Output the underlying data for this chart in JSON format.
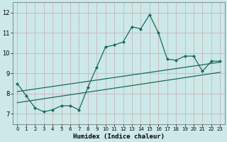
{
  "xlabel": "Humidex (Indice chaleur)",
  "x_values": [
    0,
    1,
    2,
    3,
    4,
    5,
    6,
    7,
    8,
    9,
    10,
    11,
    12,
    13,
    14,
    15,
    16,
    17,
    18,
    19,
    20,
    21,
    22,
    23
  ],
  "y_values": [
    8.5,
    7.9,
    7.3,
    7.1,
    7.2,
    7.4,
    7.4,
    7.2,
    8.3,
    9.3,
    10.3,
    10.4,
    10.55,
    11.3,
    11.2,
    11.9,
    11.0,
    9.7,
    9.65,
    9.85,
    9.85,
    9.1,
    9.6,
    9.6
  ],
  "line_color": "#1a6b5a",
  "marker": "D",
  "marker_size": 2.2,
  "ylim": [
    6.5,
    12.5
  ],
  "xlim": [
    -0.5,
    23.5
  ],
  "yticks": [
    7,
    8,
    9,
    10,
    11,
    12
  ],
  "xticks": [
    0,
    1,
    2,
    3,
    4,
    5,
    6,
    7,
    8,
    9,
    10,
    11,
    12,
    13,
    14,
    15,
    16,
    17,
    18,
    19,
    20,
    21,
    22,
    23
  ],
  "bg_color": "#cce8e8",
  "grid_color": "#c8b8b8",
  "trend_line_color": "#1a6b5a",
  "trend_x_start": 0,
  "trend_x_end": 23,
  "trend_y_start1": 8.1,
  "trend_y_end1": 9.55,
  "trend_y_start2": 7.55,
  "trend_y_end2": 9.05
}
